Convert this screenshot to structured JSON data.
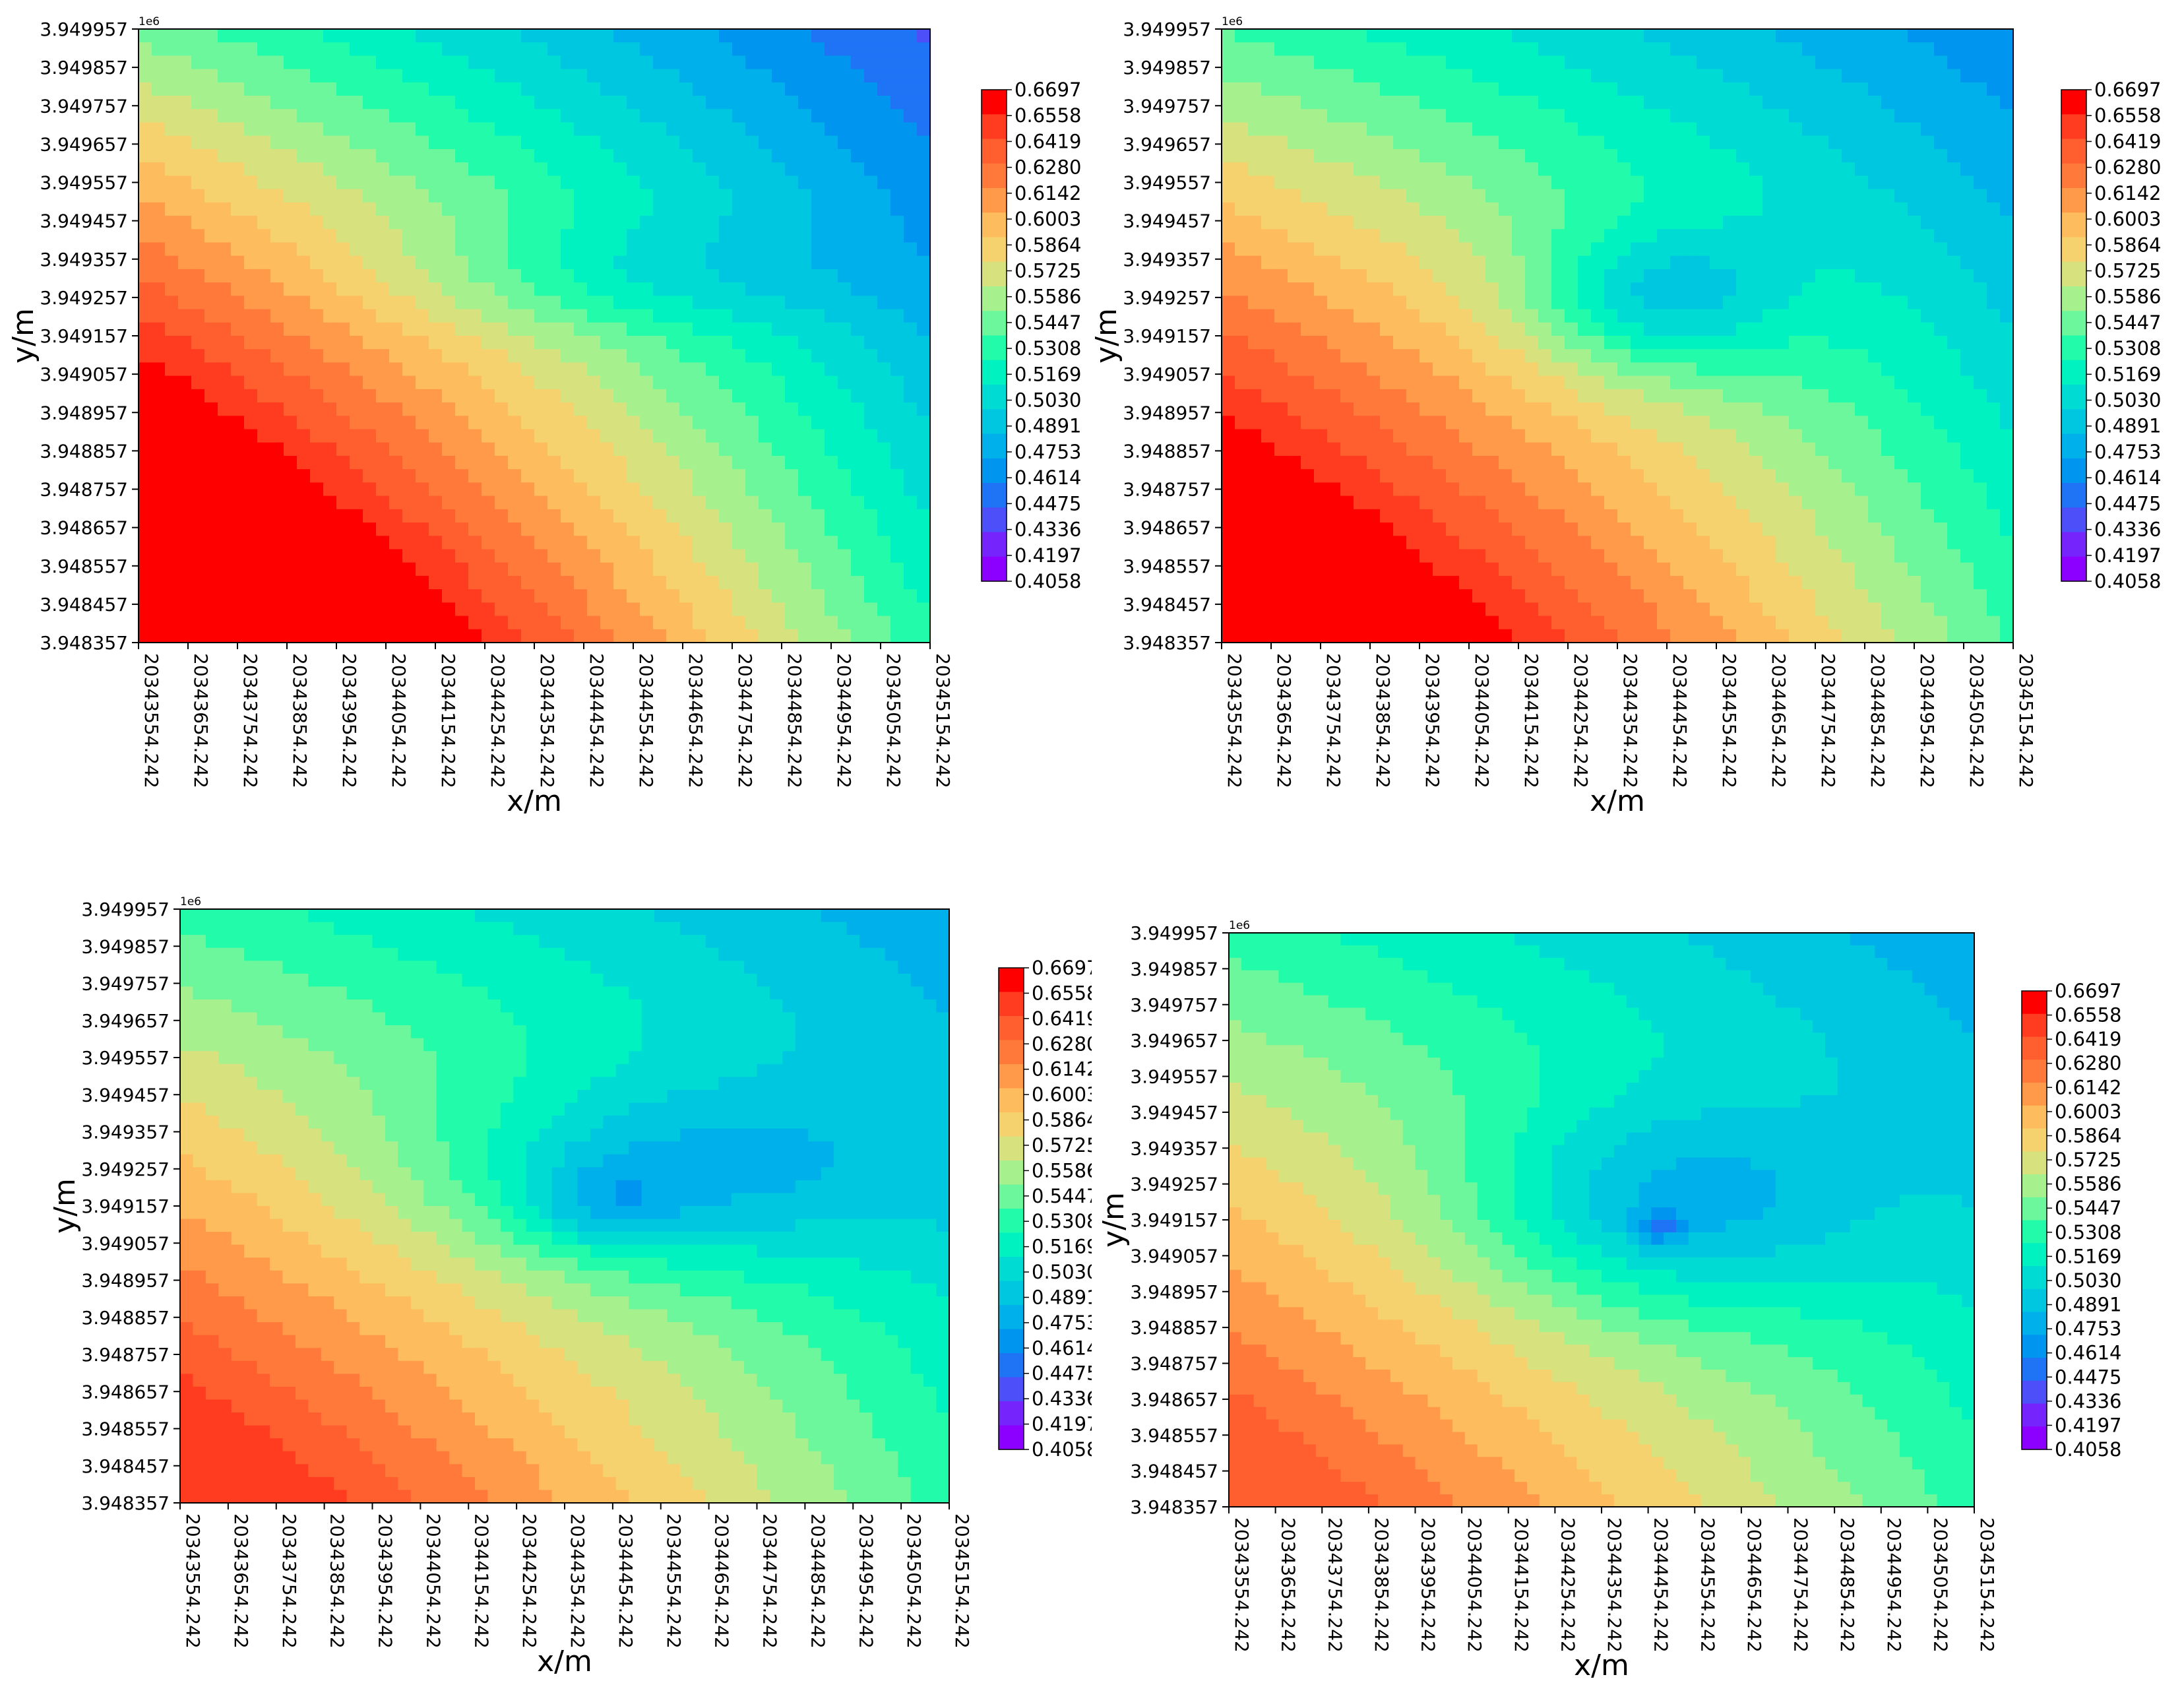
{
  "chart_data": {
    "type": "contour",
    "layout": "2x2 grid of filled contour maps sharing one colour scale",
    "colorbar": {
      "levels": [
        "0.6697",
        "0.6558",
        "0.6419",
        "0.6280",
        "0.6142",
        "0.6003",
        "0.5864",
        "0.5725",
        "0.5586",
        "0.5447",
        "0.5308",
        "0.5169",
        "0.5030",
        "0.4891",
        "0.4753",
        "0.4614",
        "0.4475",
        "0.4336",
        "0.4197",
        "0.4058"
      ],
      "colors": [
        "#ff0000",
        "#ff3c1f",
        "#ff5e2f",
        "#ff7a3a",
        "#ff9a4a",
        "#fdbc5d",
        "#f5d26e",
        "#d7e27e",
        "#a7f08e",
        "#6cf79c",
        "#22fba9",
        "#00f2c0",
        "#00dcd4",
        "#00c7e0",
        "#00b0ea",
        "#0095ee",
        "#1f73f5",
        "#4d4ff9",
        "#7525fc",
        "#8b00ff"
      ]
    },
    "x_ticks": [
      "20343554.242",
      "20343654.242",
      "20343754.242",
      "20343854.242",
      "20343954.242",
      "20344054.242",
      "20344154.242",
      "20344254.242",
      "20344354.242",
      "20344454.242",
      "20344554.242",
      "20344654.242",
      "20344754.242",
      "20344854.242",
      "20344954.242",
      "20345054.242",
      "20345154.242"
    ],
    "y_ticks": [
      "3.949957",
      "3.949857",
      "3.949757",
      "3.949657",
      "3.949557",
      "3.949457",
      "3.949357",
      "3.949257",
      "3.949157",
      "3.949057",
      "3.948957",
      "3.948857",
      "3.948757",
      "3.948657",
      "3.948557",
      "3.948457",
      "3.948357"
    ],
    "y_offset_label": "1e6",
    "xlabel": "x/m",
    "ylabel": "y/m",
    "xlim": [
      20343554.242,
      20345154.242
    ],
    "ylim": [
      3948357,
      3949957
    ],
    "panels": [
      {
        "name": "top-left",
        "max_value": 0.6697,
        "min_value": 0.4475
      },
      {
        "name": "top-right",
        "max_value": 0.6697,
        "min_value": 0.4336
      },
      {
        "name": "bottom-left",
        "max_value": 0.6419,
        "min_value": 0.4336
      },
      {
        "name": "bottom-right",
        "max_value": 0.628,
        "min_value": 0.4197
      }
    ]
  }
}
